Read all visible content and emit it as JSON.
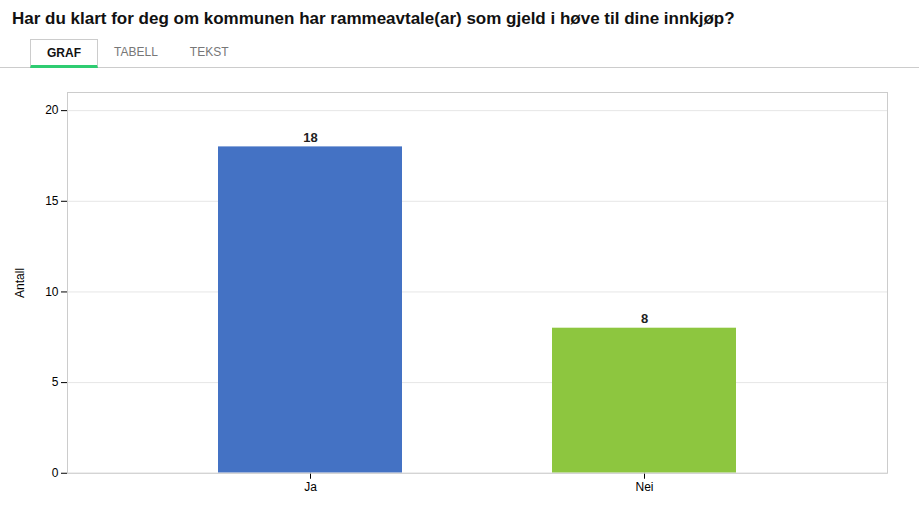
{
  "chart_data": {
    "type": "bar",
    "title": "Har du klart for deg om kommunen har rammeavtale(ar) som gjeld i høve til dine innkjøp?",
    "annotations": [
      "GRAF",
      "TABELL",
      "TEKST"
    ],
    "categories": [
      "Ja",
      "Nei"
    ],
    "values": [
      18,
      8
    ],
    "colors": [
      "#4472C4",
      "#8DC63F"
    ],
    "ylabel": "Antall",
    "ylim": [
      0,
      21
    ],
    "yticks": [
      0,
      5,
      10,
      15,
      20
    ],
    "grid": true,
    "data_labels": true
  }
}
